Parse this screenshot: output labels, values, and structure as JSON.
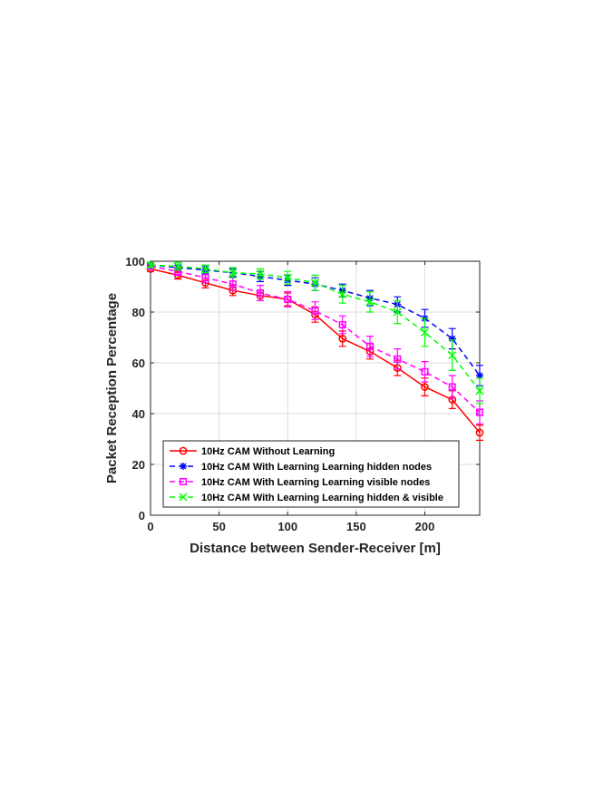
{
  "chart_data": {
    "type": "line",
    "title": "",
    "xlabel": "Distance between Sender-Receiver [m]",
    "ylabel": "Packet Reception Percentage",
    "xlim": [
      0,
      240
    ],
    "ylim": [
      0,
      100
    ],
    "xticks": [
      0,
      50,
      100,
      150,
      200
    ],
    "yticks": [
      0,
      20,
      40,
      60,
      80,
      100
    ],
    "grid": true,
    "legend_position": "bottom-left",
    "x": [
      0,
      20,
      40,
      60,
      80,
      100,
      120,
      140,
      160,
      180,
      200,
      220,
      240
    ],
    "series": [
      {
        "name": "10Hz CAM Without Learning",
        "color": "#ff0000",
        "line_style": "solid",
        "marker": "circle",
        "values": [
          97,
          94.5,
          91.5,
          88.5,
          86.5,
          85,
          79,
          69.5,
          64.5,
          58,
          50.5,
          45.5,
          32.5
        ],
        "error": [
          1,
          1.5,
          2,
          2,
          2,
          2.5,
          3,
          3,
          3,
          3,
          3.5,
          3.5,
          3
        ]
      },
      {
        "name": "10Hz CAM With Learning Learning hidden nodes",
        "color": "#0000ff",
        "line_style": "dashed",
        "marker": "asterisk",
        "values": [
          98.5,
          97.5,
          96.5,
          95.5,
          94,
          92.5,
          91,
          88.5,
          85.5,
          83,
          77.5,
          69.5,
          55
        ],
        "error": [
          1,
          1,
          1.5,
          1.5,
          2,
          2,
          2.5,
          2.5,
          3,
          3,
          3.5,
          4,
          4
        ]
      },
      {
        "name": "10Hz CAM With Learning Learning visible nodes",
        "color": "#ff00ff",
        "line_style": "dashed",
        "marker": "square",
        "values": [
          98,
          96,
          93.5,
          91,
          87.5,
          85,
          80.5,
          75,
          66.5,
          61.5,
          56.5,
          50.5,
          40.5
        ],
        "error": [
          1,
          1.5,
          2,
          2.5,
          3,
          3,
          3.5,
          3.5,
          4,
          4,
          4,
          4.5,
          4.5
        ]
      },
      {
        "name": "10Hz CAM With Learning Learning hidden & visible",
        "color": "#00ff00",
        "line_style": "dashed",
        "marker": "x",
        "values": [
          98.5,
          98,
          97,
          95.5,
          95,
          93.5,
          91.5,
          87,
          84,
          80,
          72,
          63,
          49
        ],
        "error": [
          1,
          1.5,
          1.5,
          2,
          2,
          2.5,
          3,
          3.5,
          4,
          4.5,
          5.5,
          6,
          5
        ]
      }
    ]
  }
}
